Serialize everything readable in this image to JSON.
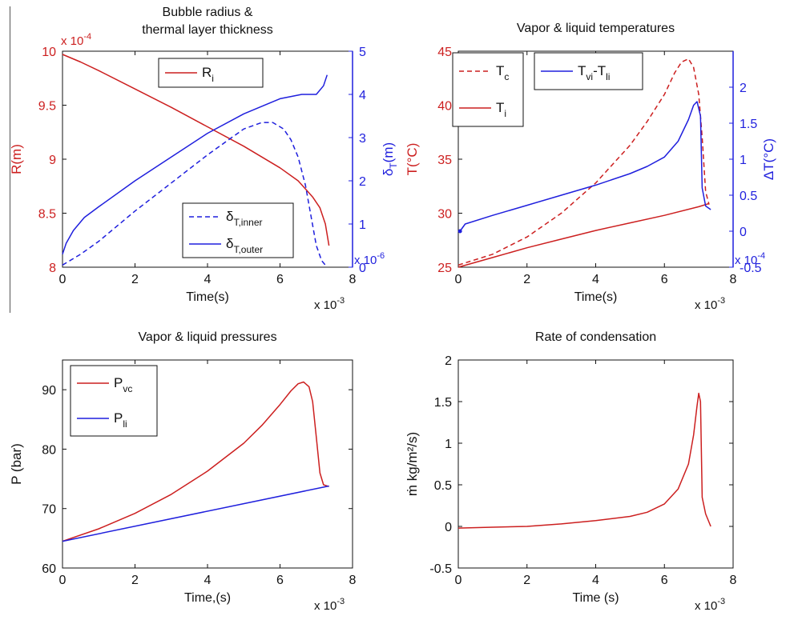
{
  "colors": {
    "red": "#cc1f1f",
    "blue": "#1f1fdd",
    "black": "#111111"
  },
  "chart_data": [
    {
      "type": "line",
      "title_lines": [
        "Bubble radius &",
        "thermal layer thickness"
      ],
      "xlabel": "Time(s)",
      "x_multiplier": "x 10",
      "x_multiplier_exp": "-3",
      "xlim": [
        0,
        8
      ],
      "xticks": [
        "0",
        "2",
        "4",
        "6",
        "8"
      ],
      "left_axis": {
        "label": "R(m)",
        "color": "red",
        "multiplier": "x 10",
        "multiplier_exp": "-4",
        "ylim": [
          8,
          10
        ],
        "ticks": [
          "8",
          "8.5",
          "9",
          "9.5",
          "10"
        ]
      },
      "right_axis": {
        "label_base": "δ",
        "label_sub": "T",
        "label_tail": "(m)",
        "color": "blue",
        "multiplier": "x 10",
        "multiplier_exp": "-6",
        "ylim": [
          0,
          5
        ],
        "ticks": [
          "0",
          "1",
          "2",
          "3",
          "4",
          "5"
        ]
      },
      "series": [
        {
          "name": "R",
          "name_sub": "i",
          "axis": "left",
          "color": "red",
          "style": "solid",
          "x": [
            0,
            0.5,
            1,
            2,
            3,
            4,
            5,
            6,
            6.5,
            6.9,
            7.1,
            7.25,
            7.35
          ],
          "y": [
            9.97,
            9.9,
            9.82,
            9.65,
            9.48,
            9.3,
            9.12,
            8.92,
            8.8,
            8.65,
            8.55,
            8.4,
            8.2
          ]
        },
        {
          "name": "δ",
          "name_sub": "T,inner",
          "axis": "right",
          "color": "blue",
          "style": "dashed",
          "x": [
            0,
            0.5,
            1,
            2,
            3,
            4,
            4.5,
            5,
            5.5,
            5.8,
            6.1,
            6.3,
            6.5,
            6.7,
            6.85,
            7.0,
            7.15,
            7.3
          ],
          "y": [
            0.05,
            0.3,
            0.6,
            1.3,
            1.95,
            2.6,
            2.9,
            3.2,
            3.35,
            3.35,
            3.2,
            2.95,
            2.55,
            1.9,
            1.2,
            0.5,
            0.15,
            0.0
          ]
        },
        {
          "name": "δ",
          "name_sub": "T,outer",
          "axis": "right",
          "color": "blue",
          "style": "solid",
          "x": [
            0,
            0.1,
            0.3,
            0.6,
            1,
            2,
            3,
            4,
            5,
            6,
            6.6,
            7.0,
            7.2,
            7.3
          ],
          "y": [
            0.3,
            0.55,
            0.85,
            1.15,
            1.4,
            2.0,
            2.55,
            3.1,
            3.55,
            3.9,
            4.0,
            4.0,
            4.2,
            4.45
          ]
        }
      ]
    },
    {
      "type": "line",
      "title": "Vapor & liquid temperatures",
      "xlabel": "Time(s)",
      "x_multiplier": "x 10",
      "x_multiplier_exp": "-3",
      "xlim": [
        0,
        8
      ],
      "xticks": [
        "0",
        "2",
        "4",
        "6",
        "8"
      ],
      "left_axis": {
        "label": "T(°C)",
        "color": "red",
        "ylim": [
          25,
          45
        ],
        "ticks": [
          "25",
          "30",
          "35",
          "40",
          "45"
        ]
      },
      "right_axis": {
        "label": "ΔT(°C)",
        "color": "blue",
        "multiplier": "x 10",
        "multiplier_exp": "-4",
        "ylim": [
          -0.5,
          2.5
        ],
        "ticks": [
          "-0.5",
          "0",
          "0.5",
          "1",
          "1.5",
          "2"
        ]
      },
      "series": [
        {
          "name": "T",
          "name_sub": "c",
          "axis": "left",
          "color": "red",
          "style": "dashed",
          "x": [
            0,
            1,
            2,
            3,
            4,
            5,
            5.5,
            6,
            6.3,
            6.5,
            6.7,
            6.85,
            7.0,
            7.1,
            7.2,
            7.3
          ],
          "y": [
            25.2,
            26.2,
            27.8,
            30.0,
            32.8,
            36.3,
            38.5,
            41.0,
            43.0,
            44.0,
            44.3,
            43.5,
            41.0,
            37.0,
            32.0,
            30.8
          ]
        },
        {
          "name": "T",
          "name_sub": "i",
          "axis": "left",
          "color": "red",
          "style": "solid",
          "x": [
            0,
            1,
            2,
            3,
            4,
            5,
            6,
            7,
            7.3
          ],
          "y": [
            25.0,
            25.9,
            26.8,
            27.6,
            28.4,
            29.1,
            29.8,
            30.6,
            30.9
          ]
        },
        {
          "name": "T",
          "name_sub": "vi",
          "name_mid": "-T",
          "name_sub2": "li",
          "axis": "right",
          "color": "blue",
          "style": "solid",
          "x": [
            0.05,
            0.2,
            1,
            2,
            3,
            4,
            5,
            5.5,
            6,
            6.4,
            6.7,
            6.85,
            6.95,
            7.05,
            7.1,
            7.2,
            7.35
          ],
          "y": [
            0.0,
            0.1,
            0.22,
            0.36,
            0.5,
            0.64,
            0.8,
            0.9,
            1.03,
            1.25,
            1.55,
            1.75,
            1.8,
            1.6,
            0.6,
            0.35,
            0.3
          ]
        }
      ]
    },
    {
      "type": "line",
      "title": "Vapor & liquid pressures",
      "xlabel": "Time,(s)",
      "x_multiplier": "x 10",
      "x_multiplier_exp": "-3",
      "xlim": [
        0,
        8
      ],
      "xticks": [
        "0",
        "2",
        "4",
        "6",
        "8"
      ],
      "left_axis": {
        "label": "P (bar)",
        "color": "black",
        "ylim": [
          60,
          95
        ],
        "ticks": [
          "60",
          "70",
          "80",
          "90"
        ]
      },
      "series": [
        {
          "name": "P",
          "name_sub": "vc",
          "axis": "left",
          "color": "red",
          "style": "solid",
          "x": [
            0,
            1,
            2,
            3,
            4,
            5,
            5.5,
            6,
            6.3,
            6.5,
            6.65,
            6.8,
            6.9,
            7.0,
            7.1,
            7.2,
            7.35
          ],
          "y": [
            64.5,
            66.6,
            69.2,
            72.4,
            76.3,
            81.0,
            84.0,
            87.5,
            89.8,
            91.0,
            91.3,
            90.5,
            88.0,
            82.0,
            76.0,
            74.0,
            73.7
          ]
        },
        {
          "name": "P",
          "name_sub": "li",
          "axis": "left",
          "color": "blue",
          "style": "solid",
          "x": [
            0,
            7.35
          ],
          "y": [
            64.5,
            73.8
          ]
        }
      ]
    },
    {
      "type": "line",
      "title": "Rate of condensation",
      "xlabel": "Time (s)",
      "x_multiplier": "x 10",
      "x_multiplier_exp": "-3",
      "xlim": [
        0,
        8
      ],
      "xticks": [
        "0",
        "2",
        "4",
        "6",
        "8"
      ],
      "left_axis": {
        "label": "ṁ kg/m²/s)",
        "color": "black",
        "ylim": [
          -0.5,
          2
        ],
        "ticks": [
          "-0.5",
          "0",
          "0.5",
          "1",
          "1.5",
          "2"
        ]
      },
      "series": [
        {
          "name": "ṁ",
          "axis": "left",
          "color": "red",
          "style": "solid",
          "x": [
            0,
            1,
            2,
            3,
            4,
            5,
            5.5,
            6,
            6.4,
            6.7,
            6.85,
            6.95,
            7.0,
            7.05,
            7.1,
            7.2,
            7.35
          ],
          "y": [
            -0.02,
            -0.01,
            0.0,
            0.03,
            0.07,
            0.12,
            0.17,
            0.27,
            0.45,
            0.75,
            1.1,
            1.45,
            1.6,
            1.5,
            0.35,
            0.15,
            0.0
          ]
        }
      ]
    }
  ]
}
